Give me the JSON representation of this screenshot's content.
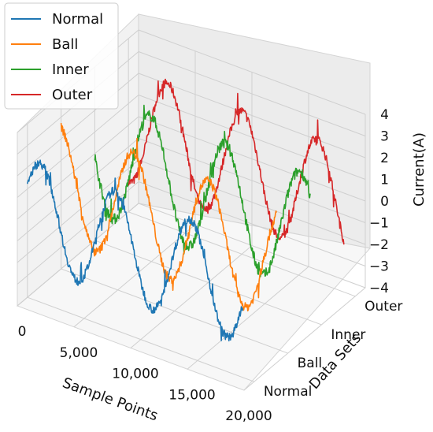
{
  "chart_data": {
    "type": "line",
    "projection": "3d",
    "x_axis": {
      "label": "Sample Points",
      "ticks": [
        0,
        5000,
        10000,
        15000,
        20000
      ],
      "tick_labels": [
        "0",
        "5,000",
        "10,000",
        "15,000",
        "20,000"
      ],
      "range": [
        0,
        20000
      ]
    },
    "y_axis": {
      "label": "Data Sets",
      "categories": [
        "Normal",
        "Ball",
        "Inner",
        "Outer"
      ]
    },
    "z_axis": {
      "label": "Current(A)",
      "ticks": [
        -4,
        -3,
        -2,
        -1,
        0,
        1,
        2,
        3,
        4
      ],
      "tick_labels": [
        "−4",
        "−3",
        "−2",
        "−1",
        "0",
        "1",
        "2",
        "3",
        "4"
      ],
      "range": [
        -4,
        4
      ]
    },
    "series": [
      {
        "name": "Normal",
        "color": "#1f77b4",
        "x_start": 0,
        "x_end": 19000,
        "amplitude": 2.4,
        "period": 6600,
        "phase": 0.5,
        "noise": 0.2
      },
      {
        "name": "Ball",
        "color": "#ff7f0e",
        "x_start": 0,
        "x_end": 19000,
        "amplitude": 2.6,
        "period": 6600,
        "phase": 1.8,
        "noise": 0.2
      },
      {
        "name": "Inner",
        "color": "#2ca02c",
        "x_start": 0,
        "x_end": 19000,
        "amplitude": 2.7,
        "period": 6600,
        "phase": 3.2,
        "noise": 0.25
      },
      {
        "name": "Outer",
        "color": "#d62728",
        "x_start": 0,
        "x_end": 19000,
        "amplitude": 2.6,
        "period": 6600,
        "phase": 4.6,
        "noise": 0.2
      }
    ],
    "legend": {
      "position": "top-left",
      "entries": [
        "Normal",
        "Ball",
        "Inner",
        "Outer"
      ]
    },
    "grid": true
  }
}
